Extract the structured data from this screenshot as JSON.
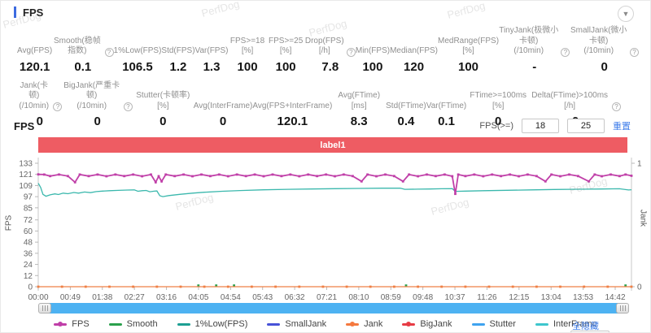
{
  "header": {
    "title": "FPS"
  },
  "watermark": "PerfDog",
  "stats_row1": [
    {
      "label": "Avg(FPS)",
      "value": "120.1",
      "help": false
    },
    {
      "label": "Smooth(稳帧指数)",
      "value": "0.1",
      "help": true
    },
    {
      "label": "1%Low(FPS)",
      "value": "106.5",
      "help": false
    },
    {
      "label": "Std(FPS)",
      "value": "1.2",
      "help": false
    },
    {
      "label": "Var(FPS)",
      "value": "1.3",
      "help": false
    },
    {
      "label": "FPS>=18 [%]",
      "value": "100",
      "help": false
    },
    {
      "label": "FPS>=25 [%]",
      "value": "100",
      "help": false
    },
    {
      "label": "Drop(FPS) [/h]",
      "value": "7.8",
      "help": true
    },
    {
      "label": "Min(FPS)",
      "value": "100",
      "help": false
    },
    {
      "label": "Median(FPS)",
      "value": "120",
      "help": false
    },
    {
      "label": "MedRange(FPS)[%]",
      "value": "100",
      "help": false
    },
    {
      "label": "TinyJank(极微小卡顿)\n(/10min)",
      "value": "-",
      "help": true
    },
    {
      "label": "SmallJank(微小卡顿)\n(/10min)",
      "value": "0",
      "help": true
    }
  ],
  "stats_row2": [
    {
      "label": "Jank(卡顿)\n(/10min)",
      "value": "0",
      "help": true
    },
    {
      "label": "BigJank(严重卡顿)\n(/10min)",
      "value": "0",
      "help": true
    },
    {
      "label": "Stutter(卡顿率) [%]",
      "value": "0",
      "help": false
    },
    {
      "label": "Avg(InterFrame)",
      "value": "0",
      "help": false
    },
    {
      "label": "Avg(FPS+InterFrame)",
      "value": "120.1",
      "help": false
    },
    {
      "label": "Avg(FTime) [ms]",
      "value": "8.3",
      "help": false
    },
    {
      "label": "Std(FTime)",
      "value": "0.4",
      "help": false
    },
    {
      "label": "Var(FTime)",
      "value": "0.1",
      "help": false
    },
    {
      "label": "FTime>=100ms [%]",
      "value": "0",
      "help": false
    },
    {
      "label": "Delta(FTime)>100ms [/h]",
      "value": "0",
      "help": true
    }
  ],
  "section": {
    "title": "FPS"
  },
  "controls": {
    "fps_ge_label": "FPS(>=)",
    "input1": "18",
    "input2": "25",
    "reset": "重置"
  },
  "banner": {
    "text": "label1",
    "color": "#ee5c63"
  },
  "chart_data": {
    "type": "line",
    "title": "",
    "ylabel_left": "FPS",
    "ylabel_right": "Jank",
    "ylim_left": [
      0,
      133
    ],
    "ylim_right": [
      0,
      1
    ],
    "y_ticks_left": [
      133,
      121,
      109,
      97,
      85,
      72,
      60,
      48,
      36,
      24,
      12,
      0
    ],
    "y_ticks_right": [
      1,
      0
    ],
    "x_ticks": [
      "00:00",
      "00:49",
      "01:38",
      "02:27",
      "03:16",
      "04:05",
      "04:54",
      "05:43",
      "06:32",
      "07:21",
      "08:10",
      "08:59",
      "09:48",
      "10:37",
      "11:26",
      "12:15",
      "13:04",
      "13:53",
      "14:42"
    ],
    "grid": false,
    "legend_position": "bottom",
    "series": [
      {
        "name": "1%Low(FPS)",
        "color": "#3bb8ad",
        "axis": "left",
        "marker": false,
        "points": [
          [
            0,
            111.5
          ],
          [
            0.004,
            107
          ],
          [
            0.008,
            99.5
          ],
          [
            0.013,
            97.5
          ],
          [
            0.02,
            99
          ],
          [
            0.028,
            100
          ],
          [
            0.034,
            99.3
          ],
          [
            0.042,
            100.8
          ],
          [
            0.05,
            100.2
          ],
          [
            0.06,
            101.5
          ],
          [
            0.068,
            100.8
          ],
          [
            0.078,
            102
          ],
          [
            0.088,
            101.3
          ],
          [
            0.098,
            102.5
          ],
          [
            0.108,
            103
          ],
          [
            0.12,
            103.4
          ],
          [
            0.135,
            103.8
          ],
          [
            0.15,
            104.1
          ],
          [
            0.162,
            104.3
          ],
          [
            0.168,
            102.8
          ],
          [
            0.175,
            103.4
          ],
          [
            0.182,
            103.7
          ],
          [
            0.188,
            102.3
          ],
          [
            0.195,
            102.9
          ],
          [
            0.2,
            103.2
          ],
          [
            0.205,
            98
          ],
          [
            0.21,
            97
          ],
          [
            0.22,
            98.2
          ],
          [
            0.24,
            99.6
          ],
          [
            0.26,
            100.8
          ],
          [
            0.28,
            101.8
          ],
          [
            0.31,
            102.8
          ],
          [
            0.34,
            103.6
          ],
          [
            0.38,
            104.4
          ],
          [
            0.42,
            104.9
          ],
          [
            0.46,
            105.3
          ],
          [
            0.5,
            105.6
          ],
          [
            0.54,
            105.9
          ],
          [
            0.58,
            106.1
          ],
          [
            0.61,
            106.2
          ],
          [
            0.618,
            104.9
          ],
          [
            0.64,
            105.1
          ],
          [
            0.66,
            105.3
          ],
          [
            0.68,
            105.5
          ],
          [
            0.698,
            105.6
          ],
          [
            0.703,
            102.7
          ],
          [
            0.72,
            103
          ],
          [
            0.75,
            103.4
          ],
          [
            0.79,
            103.9
          ],
          [
            0.83,
            104.3
          ],
          [
            0.87,
            104.7
          ],
          [
            0.91,
            105
          ],
          [
            0.95,
            105.3
          ],
          [
            0.98,
            105.5
          ],
          [
            0.995,
            104.2
          ],
          [
            1,
            104.5
          ]
        ]
      },
      {
        "name": "Smooth",
        "color": "#2aa04c",
        "axis": "left",
        "marker": true,
        "line": false,
        "points": [
          [
            0.27,
            1.2
          ],
          [
            0.3,
            1.2
          ],
          [
            0.33,
            1.2
          ],
          [
            0.62,
            1.2
          ],
          [
            0.99,
            1.2
          ]
        ]
      },
      {
        "name": "Jank",
        "color": "#ef8046",
        "axis": "right",
        "marker": true,
        "points": [
          [
            0,
            0
          ],
          [
            0.04,
            0
          ],
          [
            0.08,
            0
          ],
          [
            0.12,
            0
          ],
          [
            0.16,
            0
          ],
          [
            0.2,
            0
          ],
          [
            0.24,
            0
          ],
          [
            0.28,
            0
          ],
          [
            0.32,
            0
          ],
          [
            0.36,
            0
          ],
          [
            0.4,
            0
          ],
          [
            0.44,
            0
          ],
          [
            0.48,
            0
          ],
          [
            0.52,
            0
          ],
          [
            0.56,
            0
          ],
          [
            0.6,
            0
          ],
          [
            0.64,
            0
          ],
          [
            0.68,
            0
          ],
          [
            0.72,
            0
          ],
          [
            0.76,
            0
          ],
          [
            0.8,
            0
          ],
          [
            0.84,
            0
          ],
          [
            0.88,
            0
          ],
          [
            0.92,
            0
          ],
          [
            0.96,
            0
          ],
          [
            1,
            0
          ]
        ]
      },
      {
        "name": "FPS",
        "color": "#c03fa8",
        "axis": "left",
        "marker": true,
        "points": [
          [
            0,
            121
          ],
          [
            0.01,
            120.8
          ],
          [
            0.02,
            119.2
          ],
          [
            0.035,
            120.8
          ],
          [
            0.05,
            119.2
          ],
          [
            0.062,
            112.5
          ],
          [
            0.07,
            120.8
          ],
          [
            0.085,
            119.2
          ],
          [
            0.1,
            120.8
          ],
          [
            0.115,
            119
          ],
          [
            0.13,
            120.8
          ],
          [
            0.145,
            119.2
          ],
          [
            0.16,
            120.8
          ],
          [
            0.175,
            119
          ],
          [
            0.19,
            120.8
          ],
          [
            0.198,
            112.5
          ],
          [
            0.203,
            119
          ],
          [
            0.208,
            113.5
          ],
          [
            0.215,
            120.8
          ],
          [
            0.23,
            119.2
          ],
          [
            0.245,
            120.8
          ],
          [
            0.26,
            119
          ],
          [
            0.275,
            120.8
          ],
          [
            0.29,
            119.2
          ],
          [
            0.305,
            120.8
          ],
          [
            0.32,
            119
          ],
          [
            0.335,
            120.8
          ],
          [
            0.35,
            119.2
          ],
          [
            0.365,
            120.8
          ],
          [
            0.38,
            119
          ],
          [
            0.395,
            120.8
          ],
          [
            0.41,
            119.2
          ],
          [
            0.425,
            120.8
          ],
          [
            0.44,
            119
          ],
          [
            0.455,
            120.8
          ],
          [
            0.47,
            119.2
          ],
          [
            0.485,
            120.8
          ],
          [
            0.5,
            119
          ],
          [
            0.515,
            120.8
          ],
          [
            0.53,
            119.2
          ],
          [
            0.545,
            113.5
          ],
          [
            0.555,
            120.8
          ],
          [
            0.57,
            119
          ],
          [
            0.585,
            120.8
          ],
          [
            0.6,
            119.2
          ],
          [
            0.615,
            113.5
          ],
          [
            0.625,
            120.8
          ],
          [
            0.64,
            119
          ],
          [
            0.655,
            120.8
          ],
          [
            0.67,
            119.2
          ],
          [
            0.685,
            120.8
          ],
          [
            0.698,
            119
          ],
          [
            0.703,
            100
          ],
          [
            0.708,
            120.8
          ],
          [
            0.72,
            119.2
          ],
          [
            0.735,
            120.8
          ],
          [
            0.75,
            119
          ],
          [
            0.765,
            120.8
          ],
          [
            0.78,
            119.2
          ],
          [
            0.795,
            120.8
          ],
          [
            0.81,
            119
          ],
          [
            0.825,
            120.8
          ],
          [
            0.84,
            119.2
          ],
          [
            0.855,
            113.5
          ],
          [
            0.865,
            120.8
          ],
          [
            0.88,
            119
          ],
          [
            0.895,
            120.8
          ],
          [
            0.91,
            119.2
          ],
          [
            0.928,
            113.5
          ],
          [
            0.938,
            120.8
          ],
          [
            0.95,
            119
          ],
          [
            0.965,
            120.8
          ],
          [
            0.98,
            119.2
          ],
          [
            0.99,
            120.8
          ],
          [
            1,
            119.5
          ]
        ]
      }
    ]
  },
  "legend": [
    {
      "label": "FPS",
      "color": "#c03fa8",
      "dot": true
    },
    {
      "label": "Smooth",
      "color": "#2aa04c",
      "dot": false
    },
    {
      "label": "1%Low(FPS)",
      "color": "#1d9f93",
      "dot": false
    },
    {
      "label": "SmallJank",
      "color": "#4752d8",
      "dot": false
    },
    {
      "label": "Jank",
      "color": "#f5793f",
      "dot": true
    },
    {
      "label": "BigJank",
      "color": "#e73c45",
      "dot": true
    },
    {
      "label": "Stutter",
      "color": "#3fa3ef",
      "dot": false
    },
    {
      "label": "InterFrame",
      "color": "#3ec6cd",
      "dot": false
    }
  ],
  "hide_all": "全隐藏",
  "partial_next": {
    "reset": "重置"
  }
}
